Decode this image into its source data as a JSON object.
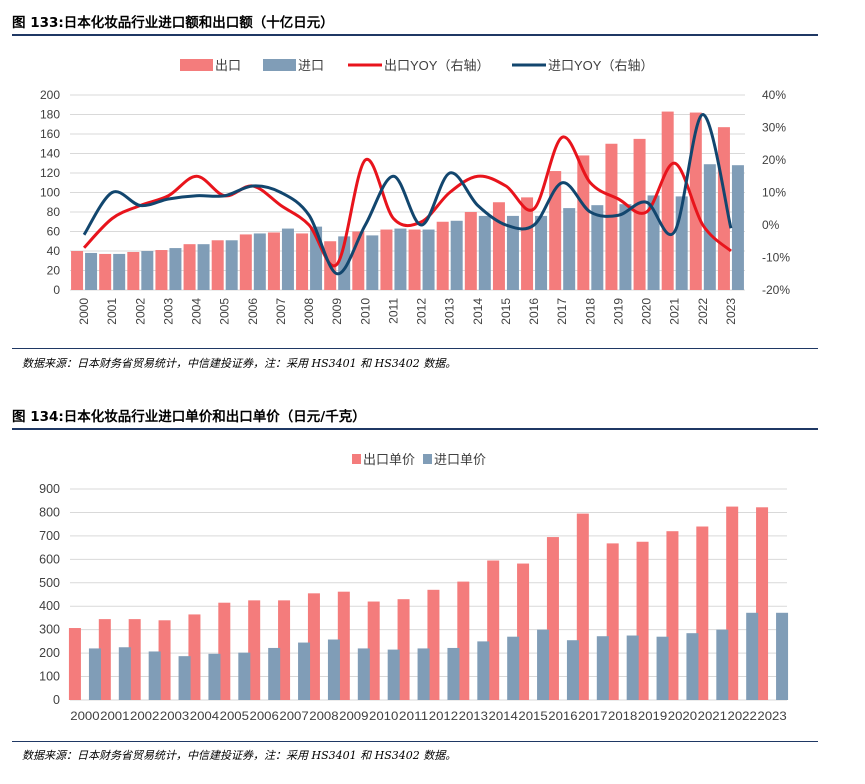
{
  "figures": [
    {
      "title": "图 133:日本化妆品行业进口额和出口额（十亿日元）",
      "source": "数据来源：日本财务省贸易统计，中信建投证券，注：采用 HS3401 和 HS3402 数据。"
    },
    {
      "title": "图 134:日本化妆品行业进口单价和出口单价（日元/千克）",
      "source": "数据来源：日本财务省贸易统计，中信建投证券，注：采用 HS3401 和 HS3402 数据。"
    }
  ],
  "colors": {
    "export_bar": "#f47c7c",
    "import_bar": "#809db7",
    "export_line": "#e8141c",
    "import_line": "#12466e",
    "grid": "#d9d9d9",
    "rule": "#1f3864"
  },
  "chart_data": [
    {
      "type": "bar",
      "title": "日本化妆品行业进口额和出口额（十亿日元）",
      "categories": [
        "2000",
        "2001",
        "2002",
        "2003",
        "2004",
        "2005",
        "2006",
        "2007",
        "2008",
        "2009",
        "2010",
        "2011",
        "2012",
        "2013",
        "2014",
        "2015",
        "2016",
        "2017",
        "2018",
        "2019",
        "2020",
        "2021",
        "2022",
        "2023"
      ],
      "series": [
        {
          "name": "出口",
          "type": "bar",
          "axis": "left",
          "values": [
            40,
            37,
            39,
            41,
            47,
            51,
            57,
            59,
            58,
            50,
            60,
            62,
            62,
            70,
            80,
            90,
            95,
            122,
            138,
            150,
            155,
            183,
            182,
            167
          ]
        },
        {
          "name": "进口",
          "type": "bar",
          "axis": "left",
          "values": [
            38,
            37,
            40,
            43,
            47,
            51,
            58,
            63,
            65,
            55,
            56,
            63,
            62,
            71,
            76,
            76,
            76,
            84,
            87,
            88,
            97,
            96,
            129,
            128
          ]
        },
        {
          "name": "出口YOY（右轴）",
          "type": "line",
          "axis": "right",
          "values": [
            -7,
            2,
            6,
            9,
            15,
            9,
            12,
            6,
            0,
            -12,
            20,
            2,
            1,
            10,
            15,
            12,
            5,
            27,
            13,
            8,
            4,
            19,
            0,
            -8
          ]
        },
        {
          "name": "进口YOY（右轴）",
          "type": "line",
          "axis": "right",
          "values": [
            -3,
            10,
            6,
            8,
            9,
            9,
            12,
            10,
            3,
            -15,
            0,
            15,
            0,
            16,
            6,
            0,
            0,
            13,
            4,
            3,
            7,
            -2,
            34,
            -1
          ]
        }
      ],
      "y_left": {
        "min": 0,
        "max": 200,
        "step": 20,
        "ticks": [
          "0",
          "20",
          "40",
          "60",
          "80",
          "100",
          "120",
          "140",
          "160",
          "180",
          "200"
        ]
      },
      "y_right": {
        "min": -20,
        "max": 40,
        "step": 10,
        "ticks": [
          "-20%",
          "-10%",
          "0%",
          "10%",
          "20%",
          "30%",
          "40%"
        ]
      },
      "legend": {
        "position": "top",
        "items": [
          "出口",
          "进口",
          "出口YOY（右轴）",
          "进口YOY（右轴）"
        ]
      },
      "grid": true
    },
    {
      "type": "bar",
      "title": "日本化妆品行业进口单价和出口单价（日元/千克）",
      "categories": [
        "2000",
        "2001",
        "2002",
        "2003",
        "2004",
        "2005",
        "2006",
        "2007",
        "2008",
        "2009",
        "2010",
        "2011",
        "2012",
        "2013",
        "2014",
        "2015",
        "2016",
        "2017",
        "2018",
        "2019",
        "2020",
        "2021",
        "2022",
        "2023"
      ],
      "series": [
        {
          "name": "出口单价",
          "values": [
            307,
            345,
            345,
            340,
            365,
            415,
            425,
            425,
            455,
            462,
            420,
            430,
            470,
            505,
            595,
            582,
            695,
            795,
            668,
            675,
            720,
            740,
            825,
            822
          ]
        },
        {
          "name": "进口单价",
          "values": [
            220,
            225,
            207,
            187,
            197,
            202,
            222,
            245,
            258,
            220,
            215,
            220,
            222,
            250,
            270,
            300,
            255,
            272,
            275,
            270,
            285,
            300,
            372,
            372
          ]
        }
      ],
      "y": {
        "min": 0,
        "max": 900,
        "step": 100,
        "ticks": [
          "0",
          "100",
          "200",
          "300",
          "400",
          "500",
          "600",
          "700",
          "800",
          "900"
        ]
      },
      "legend": {
        "position": "top",
        "items": [
          "出口单价",
          "进口单价"
        ]
      },
      "grid": true
    }
  ]
}
